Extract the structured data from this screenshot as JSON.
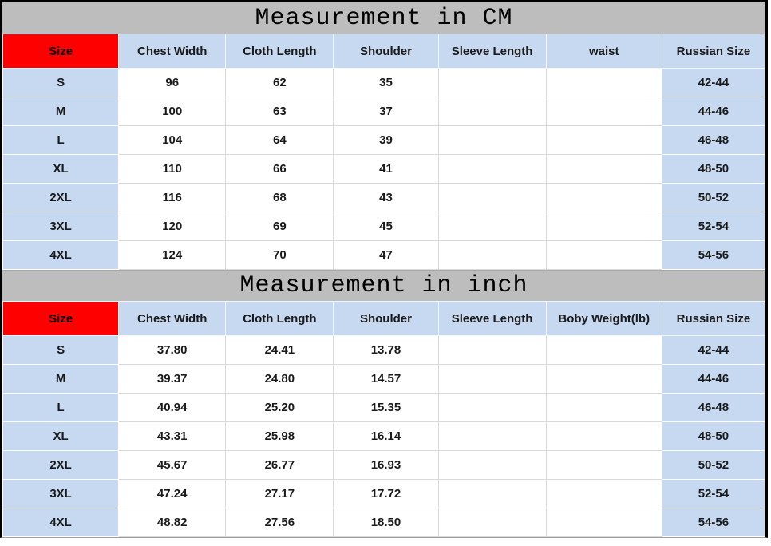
{
  "colors": {
    "title_band": "#BDBDBD",
    "header_blue": "#C6D9F1",
    "size_red": "#FE0000",
    "grid_line": "#D9D9D9",
    "outer_border": "#000000",
    "text": "#1A1A1A"
  },
  "chart_data": [
    {
      "type": "table",
      "title": "Measurement in CM",
      "columns": [
        "Size",
        "Chest Width",
        "Cloth Length",
        "Shoulder",
        "Sleeve Length",
        "waist",
        "Russian Size"
      ],
      "rows": [
        [
          "S",
          "96",
          "62",
          "35",
          "",
          "",
          "42-44"
        ],
        [
          "M",
          "100",
          "63",
          "37",
          "",
          "",
          "44-46"
        ],
        [
          "L",
          "104",
          "64",
          "39",
          "",
          "",
          "46-48"
        ],
        [
          "XL",
          "110",
          "66",
          "41",
          "",
          "",
          "48-50"
        ],
        [
          "2XL",
          "116",
          "68",
          "43",
          "",
          "",
          "50-52"
        ],
        [
          "3XL",
          "120",
          "69",
          "45",
          "",
          "",
          "52-54"
        ],
        [
          "4XL",
          "124",
          "70",
          "47",
          "",
          "",
          "54-56"
        ]
      ]
    },
    {
      "type": "table",
      "title": "Measurement in inch",
      "columns": [
        "Size",
        "Chest Width",
        "Cloth Length",
        "Shoulder",
        "Sleeve Length",
        "Boby Weight(lb)",
        "Russian Size"
      ],
      "rows": [
        [
          "S",
          "37.80",
          "24.41",
          "13.78",
          "",
          "",
          "42-44"
        ],
        [
          "M",
          "39.37",
          "24.80",
          "14.57",
          "",
          "",
          "44-46"
        ],
        [
          "L",
          "40.94",
          "25.20",
          "15.35",
          "",
          "",
          "46-48"
        ],
        [
          "XL",
          "43.31",
          "25.98",
          "16.14",
          "",
          "",
          "48-50"
        ],
        [
          "2XL",
          "45.67",
          "26.77",
          "16.93",
          "",
          "",
          "50-52"
        ],
        [
          "3XL",
          "47.24",
          "27.17",
          "17.72",
          "",
          "",
          "52-54"
        ],
        [
          "4XL",
          "48.82",
          "27.56",
          "18.50",
          "",
          "",
          "54-56"
        ]
      ]
    }
  ]
}
